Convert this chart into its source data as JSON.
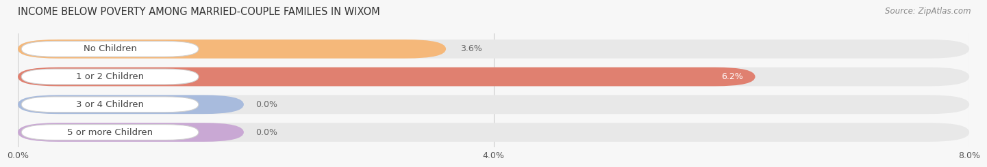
{
  "title": "INCOME BELOW POVERTY AMONG MARRIED-COUPLE FAMILIES IN WIXOM",
  "source": "Source: ZipAtlas.com",
  "categories": [
    "No Children",
    "1 or 2 Children",
    "3 or 4 Children",
    "5 or more Children"
  ],
  "values": [
    3.6,
    6.2,
    0.0,
    0.0
  ],
  "bar_colors": [
    "#f5b87a",
    "#e08070",
    "#a8bbdd",
    "#c9a8d4"
  ],
  "xlim": [
    0,
    8.0
  ],
  "xticks": [
    0.0,
    4.0,
    8.0
  ],
  "xticklabels": [
    "0.0%",
    "4.0%",
    "8.0%"
  ],
  "background_color": "#f7f7f7",
  "bar_bg_color": "#e8e8e8",
  "title_fontsize": 10.5,
  "source_fontsize": 8.5,
  "label_fontsize": 9.5,
  "value_fontsize": 9
}
